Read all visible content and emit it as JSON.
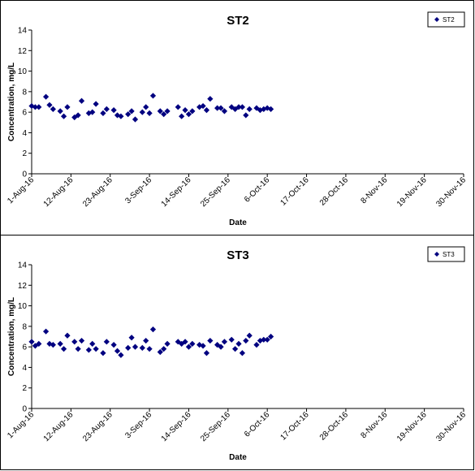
{
  "chart_data": [
    {
      "type": "scatter",
      "title": "ST2",
      "xlabel": "Date",
      "ylabel": "Concentration, mg/L",
      "ylim": [
        0,
        14
      ],
      "yticks": [
        "0",
        "2",
        "4",
        "6",
        "8",
        "10",
        "12",
        "14"
      ],
      "xlim": [
        "2016-08-01",
        "2016-11-30"
      ],
      "xticks": [
        "1-Aug-16",
        "12-Aug-16",
        "23-Aug-16",
        "3-Sep-16",
        "14-Sep-16",
        "25-Sep-16",
        "6-Oct-16",
        "17-Oct-16",
        "28-Oct-16",
        "8-Nov-16",
        "19-Nov-16",
        "30-Nov-16"
      ],
      "legend_position": "top-right",
      "marker_color": "#000080",
      "series": [
        {
          "name": "ST2",
          "points": [
            {
              "x": "2016-08-01",
              "y": 6.6
            },
            {
              "x": "2016-08-02",
              "y": 6.5
            },
            {
              "x": "2016-08-03",
              "y": 6.5
            },
            {
              "x": "2016-08-05",
              "y": 7.5
            },
            {
              "x": "2016-08-06",
              "y": 6.7
            },
            {
              "x": "2016-08-07",
              "y": 6.3
            },
            {
              "x": "2016-08-09",
              "y": 6.1
            },
            {
              "x": "2016-08-10",
              "y": 5.6
            },
            {
              "x": "2016-08-11",
              "y": 6.5
            },
            {
              "x": "2016-08-13",
              "y": 5.5
            },
            {
              "x": "2016-08-14",
              "y": 5.7
            },
            {
              "x": "2016-08-15",
              "y": 7.1
            },
            {
              "x": "2016-08-17",
              "y": 5.9
            },
            {
              "x": "2016-08-18",
              "y": 6.0
            },
            {
              "x": "2016-08-19",
              "y": 6.8
            },
            {
              "x": "2016-08-21",
              "y": 5.9
            },
            {
              "x": "2016-08-22",
              "y": 6.3
            },
            {
              "x": "2016-08-24",
              "y": 6.2
            },
            {
              "x": "2016-08-25",
              "y": 5.7
            },
            {
              "x": "2016-08-26",
              "y": 5.6
            },
            {
              "x": "2016-08-28",
              "y": 5.8
            },
            {
              "x": "2016-08-29",
              "y": 6.1
            },
            {
              "x": "2016-08-30",
              "y": 5.3
            },
            {
              "x": "2016-09-01",
              "y": 6.0
            },
            {
              "x": "2016-09-02",
              "y": 6.5
            },
            {
              "x": "2016-09-03",
              "y": 5.9
            },
            {
              "x": "2016-09-04",
              "y": 7.6
            },
            {
              "x": "2016-09-06",
              "y": 6.1
            },
            {
              "x": "2016-09-07",
              "y": 5.8
            },
            {
              "x": "2016-09-08",
              "y": 6.1
            },
            {
              "x": "2016-09-11",
              "y": 6.5
            },
            {
              "x": "2016-09-12",
              "y": 5.6
            },
            {
              "x": "2016-09-13",
              "y": 6.2
            },
            {
              "x": "2016-09-14",
              "y": 5.8
            },
            {
              "x": "2016-09-15",
              "y": 6.1
            },
            {
              "x": "2016-09-17",
              "y": 6.5
            },
            {
              "x": "2016-09-18",
              "y": 6.6
            },
            {
              "x": "2016-09-19",
              "y": 6.2
            },
            {
              "x": "2016-09-20",
              "y": 7.3
            },
            {
              "x": "2016-09-22",
              "y": 6.4
            },
            {
              "x": "2016-09-23",
              "y": 6.4
            },
            {
              "x": "2016-09-24",
              "y": 6.1
            },
            {
              "x": "2016-09-26",
              "y": 6.5
            },
            {
              "x": "2016-09-27",
              "y": 6.3
            },
            {
              "x": "2016-09-28",
              "y": 6.5
            },
            {
              "x": "2016-09-29",
              "y": 6.5
            },
            {
              "x": "2016-09-30",
              "y": 5.7
            },
            {
              "x": "2016-10-01",
              "y": 6.3
            },
            {
              "x": "2016-10-03",
              "y": 6.4
            },
            {
              "x": "2016-10-04",
              "y": 6.2
            },
            {
              "x": "2016-10-05",
              "y": 6.3
            },
            {
              "x": "2016-10-06",
              "y": 6.4
            },
            {
              "x": "2016-10-07",
              "y": 6.3
            }
          ]
        }
      ]
    },
    {
      "type": "scatter",
      "title": "ST3",
      "xlabel": "Date",
      "ylabel": "Concentration, mg/L",
      "ylim": [
        0,
        14
      ],
      "yticks": [
        "0",
        "2",
        "4",
        "6",
        "8",
        "10",
        "12",
        "14"
      ],
      "xlim": [
        "2016-08-01",
        "2016-11-30"
      ],
      "xticks": [
        "1-Aug-16",
        "12-Aug-16",
        "23-Aug-16",
        "3-Sep-16",
        "14-Sep-16",
        "25-Sep-16",
        "6-Oct-16",
        "17-Oct-16",
        "28-Oct-16",
        "8-Nov-16",
        "19-Nov-16",
        "30-Nov-16"
      ],
      "legend_position": "top-right",
      "marker_color": "#000080",
      "series": [
        {
          "name": "ST3",
          "points": [
            {
              "x": "2016-08-01",
              "y": 6.5
            },
            {
              "x": "2016-08-02",
              "y": 6.1
            },
            {
              "x": "2016-08-03",
              "y": 6.3
            },
            {
              "x": "2016-08-05",
              "y": 7.5
            },
            {
              "x": "2016-08-06",
              "y": 6.3
            },
            {
              "x": "2016-08-07",
              "y": 6.2
            },
            {
              "x": "2016-08-09",
              "y": 6.3
            },
            {
              "x": "2016-08-10",
              "y": 5.8
            },
            {
              "x": "2016-08-11",
              "y": 7.1
            },
            {
              "x": "2016-08-13",
              "y": 6.5
            },
            {
              "x": "2016-08-14",
              "y": 5.8
            },
            {
              "x": "2016-08-15",
              "y": 6.6
            },
            {
              "x": "2016-08-17",
              "y": 5.7
            },
            {
              "x": "2016-08-18",
              "y": 6.3
            },
            {
              "x": "2016-08-19",
              "y": 5.8
            },
            {
              "x": "2016-08-21",
              "y": 5.4
            },
            {
              "x": "2016-08-22",
              "y": 6.5
            },
            {
              "x": "2016-08-24",
              "y": 6.2
            },
            {
              "x": "2016-08-25",
              "y": 5.6
            },
            {
              "x": "2016-08-26",
              "y": 5.2
            },
            {
              "x": "2016-08-28",
              "y": 5.9
            },
            {
              "x": "2016-08-29",
              "y": 6.9
            },
            {
              "x": "2016-08-30",
              "y": 6.0
            },
            {
              "x": "2016-09-01",
              "y": 5.9
            },
            {
              "x": "2016-09-02",
              "y": 6.6
            },
            {
              "x": "2016-09-03",
              "y": 5.8
            },
            {
              "x": "2016-09-04",
              "y": 7.7
            },
            {
              "x": "2016-09-06",
              "y": 5.5
            },
            {
              "x": "2016-09-07",
              "y": 5.8
            },
            {
              "x": "2016-09-08",
              "y": 6.3
            },
            {
              "x": "2016-09-11",
              "y": 6.5
            },
            {
              "x": "2016-09-12",
              "y": 6.3
            },
            {
              "x": "2016-09-13",
              "y": 6.5
            },
            {
              "x": "2016-09-14",
              "y": 6.0
            },
            {
              "x": "2016-09-15",
              "y": 6.3
            },
            {
              "x": "2016-09-17",
              "y": 6.2
            },
            {
              "x": "2016-09-18",
              "y": 6.1
            },
            {
              "x": "2016-09-19",
              "y": 5.4
            },
            {
              "x": "2016-09-20",
              "y": 6.6
            },
            {
              "x": "2016-09-22",
              "y": 6.2
            },
            {
              "x": "2016-09-23",
              "y": 6.0
            },
            {
              "x": "2016-09-24",
              "y": 6.5
            },
            {
              "x": "2016-09-26",
              "y": 6.7
            },
            {
              "x": "2016-09-27",
              "y": 5.8
            },
            {
              "x": "2016-09-28",
              "y": 6.3
            },
            {
              "x": "2016-09-29",
              "y": 5.4
            },
            {
              "x": "2016-09-30",
              "y": 6.6
            },
            {
              "x": "2016-10-01",
              "y": 7.1
            },
            {
              "x": "2016-10-03",
              "y": 6.2
            },
            {
              "x": "2016-10-04",
              "y": 6.6
            },
            {
              "x": "2016-10-05",
              "y": 6.7
            },
            {
              "x": "2016-10-06",
              "y": 6.7
            },
            {
              "x": "2016-10-07",
              "y": 7.0
            }
          ]
        }
      ]
    }
  ]
}
